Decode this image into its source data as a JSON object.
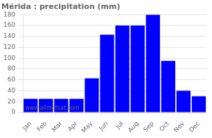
{
  "chart_data": {
    "type": "bar",
    "title": "Mérida : precipitation (mm)",
    "categories": [
      "Jan",
      "Feb",
      "Mar",
      "Apr",
      "May",
      "Jun",
      "Jul",
      "Aug",
      "Sep",
      "Oct",
      "Nov",
      "Dec"
    ],
    "values": [
      25,
      25,
      25,
      25,
      63,
      143,
      160,
      160,
      180,
      95,
      40,
      30
    ],
    "color": "#0000ff",
    "ylim": [
      0,
      180
    ],
    "yticks": [
      0,
      20,
      40,
      60,
      80,
      100,
      120,
      140,
      160,
      180
    ],
    "grid": true,
    "annotation": "www.allmetsat.com"
  }
}
